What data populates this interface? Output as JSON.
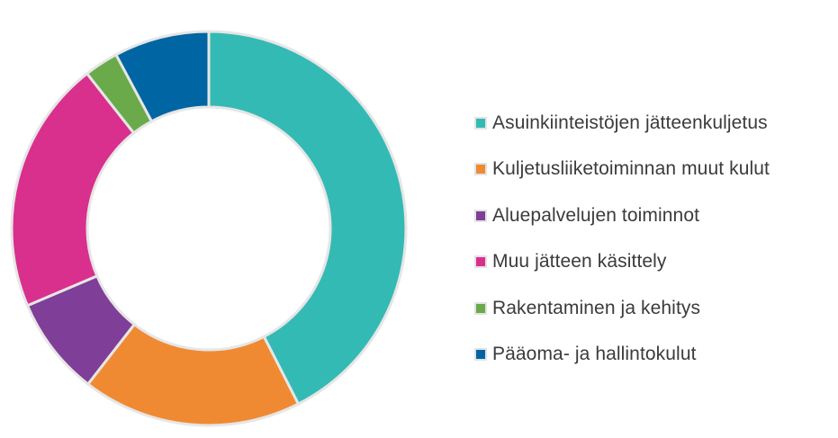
{
  "chart_data": {
    "type": "pie",
    "donut": true,
    "title": "",
    "legend_position": "right",
    "start_angle_deg": 0,
    "direction": "clockwise",
    "series": [
      {
        "name": "Asuinkiinteistöjen jätteenkuljetus",
        "value": 42.5,
        "color": "#34bab4"
      },
      {
        "name": "Kuljetusliiketoiminnan muut kulut",
        "value": 18.0,
        "color": "#f08a32"
      },
      {
        "name": "Aluepalvelujen toiminnot",
        "value": 8.1,
        "color": "#7f3f98"
      },
      {
        "name": "Muu jätteen käsittely",
        "value": 20.8,
        "color": "#d92f8d"
      },
      {
        "name": "Rakentaminen ja kehitys",
        "value": 2.8,
        "color": "#6aaa4b"
      },
      {
        "name": "Pääoma- ja hallintokulut",
        "value": 7.8,
        "color": "#0065a3"
      }
    ]
  }
}
